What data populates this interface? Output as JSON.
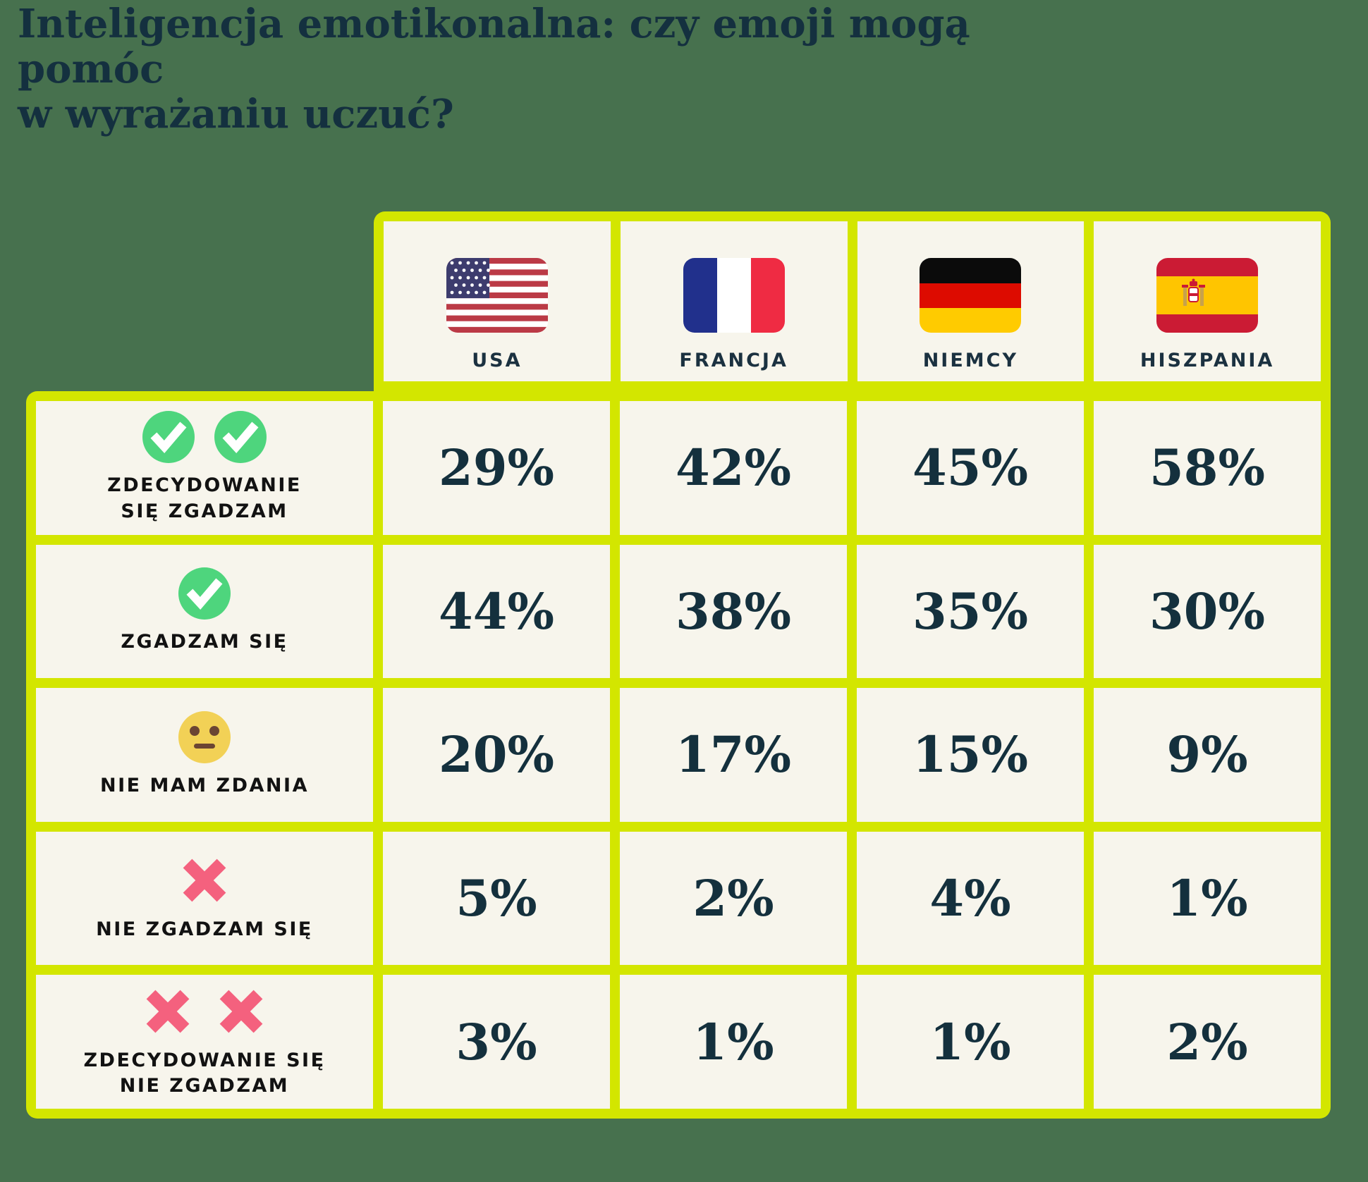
{
  "title_lines": [
    "Inteligencja emotikonalna: czy emoji mogą pomóc",
    "w wyrażaniu uczuć?"
  ],
  "colors": {
    "background_green": "#47714E",
    "grid_lime": "#D3E600",
    "cell_cream": "#F7F5EC",
    "text_navy": "#14303D",
    "label_black": "#121212",
    "check_green": "#4ED57D",
    "cross_pink": "#F4617E",
    "emoji_yellow": "#F2D156",
    "emoji_brown": "#6B4533"
  },
  "header": {
    "columns": [
      {
        "label": "USA",
        "flag": "usa-flag-icon"
      },
      {
        "label": "FRANCJA",
        "flag": "france-flag-icon"
      },
      {
        "label": "NIEMCY",
        "flag": "germany-flag-icon"
      },
      {
        "label": "HISZPANIA",
        "flag": "spain-flag-icon"
      }
    ]
  },
  "rows": [
    {
      "label_lines": [
        "ZDECYDOWANIE",
        "SIĘ ZGADZAM"
      ],
      "icon": "check-circle-icon",
      "icon_count": 2,
      "values": [
        "29%",
        "42%",
        "45%",
        "58%"
      ]
    },
    {
      "label_lines": [
        "ZGADZAM SIĘ"
      ],
      "icon": "check-circle-icon",
      "icon_count": 1,
      "values": [
        "44%",
        "38%",
        "35%",
        "30%"
      ]
    },
    {
      "label_lines": [
        "NIE MAM ZDANIA"
      ],
      "icon": "neutral-face-icon",
      "icon_count": 1,
      "values": [
        "20%",
        "17%",
        "15%",
        "9%"
      ]
    },
    {
      "label_lines": [
        "NIE ZGADZAM SIĘ"
      ],
      "icon": "cross-mark-icon",
      "icon_count": 1,
      "values": [
        "5%",
        "2%",
        "4%",
        "1%"
      ]
    },
    {
      "label_lines": [
        "ZDECYDOWANIE SIĘ",
        "NIE ZGADZAM"
      ],
      "icon": "cross-mark-icon",
      "icon_count": 2,
      "values": [
        "3%",
        "1%",
        "1%",
        "2%"
      ]
    }
  ],
  "chart_data": {
    "type": "table",
    "title": "Inteligencja emotikonalna: czy emoji mogą pomóc w wyrażaniu uczuć?",
    "columns": [
      "USA",
      "FRANCJA",
      "NIEMCY",
      "HISZPANIA"
    ],
    "row_labels": [
      "ZDECYDOWANIE SIĘ ZGADZAM",
      "ZGADZAM SIĘ",
      "NIE MAM ZDANIA",
      "NIE ZGADZAM SIĘ",
      "ZDECYDOWANIE SIĘ NIE ZGADZAM"
    ],
    "values_percent": [
      [
        29,
        42,
        45,
        58
      ],
      [
        44,
        38,
        35,
        30
      ],
      [
        20,
        17,
        15,
        9
      ],
      [
        5,
        2,
        4,
        1
      ],
      [
        3,
        1,
        1,
        2
      ]
    ]
  }
}
